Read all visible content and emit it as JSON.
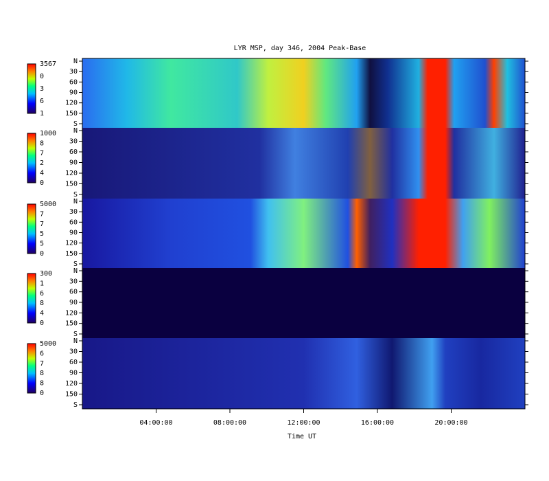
{
  "chart_data": {
    "type": "keogram",
    "title": "LYR MSP, day 346, 2004 Peak-Base",
    "xlabel": "Time UT",
    "xlim": [
      0,
      24
    ],
    "xticks": [
      {
        "value": 4,
        "label": "04:00:00"
      },
      {
        "value": 8,
        "label": "08:00:00"
      },
      {
        "value": 12,
        "label": "12:00:00"
      },
      {
        "value": 16,
        "label": "16:00:00"
      },
      {
        "value": 20,
        "label": "20:00:00"
      }
    ],
    "ylim": [
      0,
      180
    ],
    "yticks": [
      {
        "value": 0,
        "label": "N"
      },
      30,
      60,
      90,
      120,
      150,
      {
        "value": 180,
        "label": "S"
      }
    ],
    "panels": [
      {
        "colorbar_labels": [
          "3567",
          "0",
          "3",
          "6",
          "1"
        ]
      },
      {
        "colorbar_labels": [
          "1000",
          "8",
          "7",
          "2",
          "4",
          "0"
        ]
      },
      {
        "colorbar_labels": [
          "5000",
          "7",
          "7",
          "5",
          "5",
          "0"
        ]
      },
      {
        "colorbar_labels": [
          "300",
          "1",
          "6",
          "8",
          "4",
          "0"
        ]
      },
      {
        "colorbar_labels": [
          "5000",
          "6",
          "7",
          "8",
          "8",
          "0"
        ]
      }
    ]
  }
}
